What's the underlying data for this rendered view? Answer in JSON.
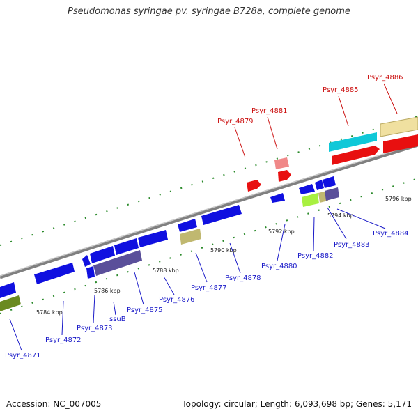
{
  "title": "Pseudomonas syringae pv. syringae B728a, complete genome",
  "footer": {
    "accession": "Accession: NC_007005",
    "stats": "Topology: circular; Length: 6,093,698 bp; Genes: 5,171"
  },
  "colors": {
    "blue": "#1010e0",
    "red": "#e81010",
    "cyan": "#10c8d8",
    "khaki": "#c0b870",
    "wheat": "#f0e0a0",
    "slate": "#5a4f9a",
    "olive": "#6a8a20",
    "lime": "#a8f040",
    "pink": "#f08888",
    "label_blue": "#1a1ac8",
    "label_red": "#cc1111"
  },
  "kbp_ticks": [
    "5784 kbp",
    "5786 kbp",
    "5788 kbp",
    "5790 kbp",
    "5792 kbp",
    "5794 kbp",
    "5796 kbp"
  ],
  "genes": {
    "forward": [
      {
        "name": "Psyr_4879",
        "color": "red"
      },
      {
        "name": "Psyr_4881",
        "color": "red"
      },
      {
        "name": "Psyr_4885",
        "color": "red"
      },
      {
        "name": "Psyr_4886",
        "color": "red"
      }
    ],
    "reverse": [
      {
        "name": "Psyr_4871"
      },
      {
        "name": "Psyr_4872"
      },
      {
        "name": "Psyr_4873"
      },
      {
        "name": "ssuB"
      },
      {
        "name": "Psyr_4875"
      },
      {
        "name": "Psyr_4876"
      },
      {
        "name": "Psyr_4877"
      },
      {
        "name": "Psyr_4878"
      },
      {
        "name": "Psyr_4880"
      },
      {
        "name": "Psyr_4882"
      },
      {
        "name": "Psyr_4883"
      },
      {
        "name": "Psyr_4884"
      }
    ]
  }
}
